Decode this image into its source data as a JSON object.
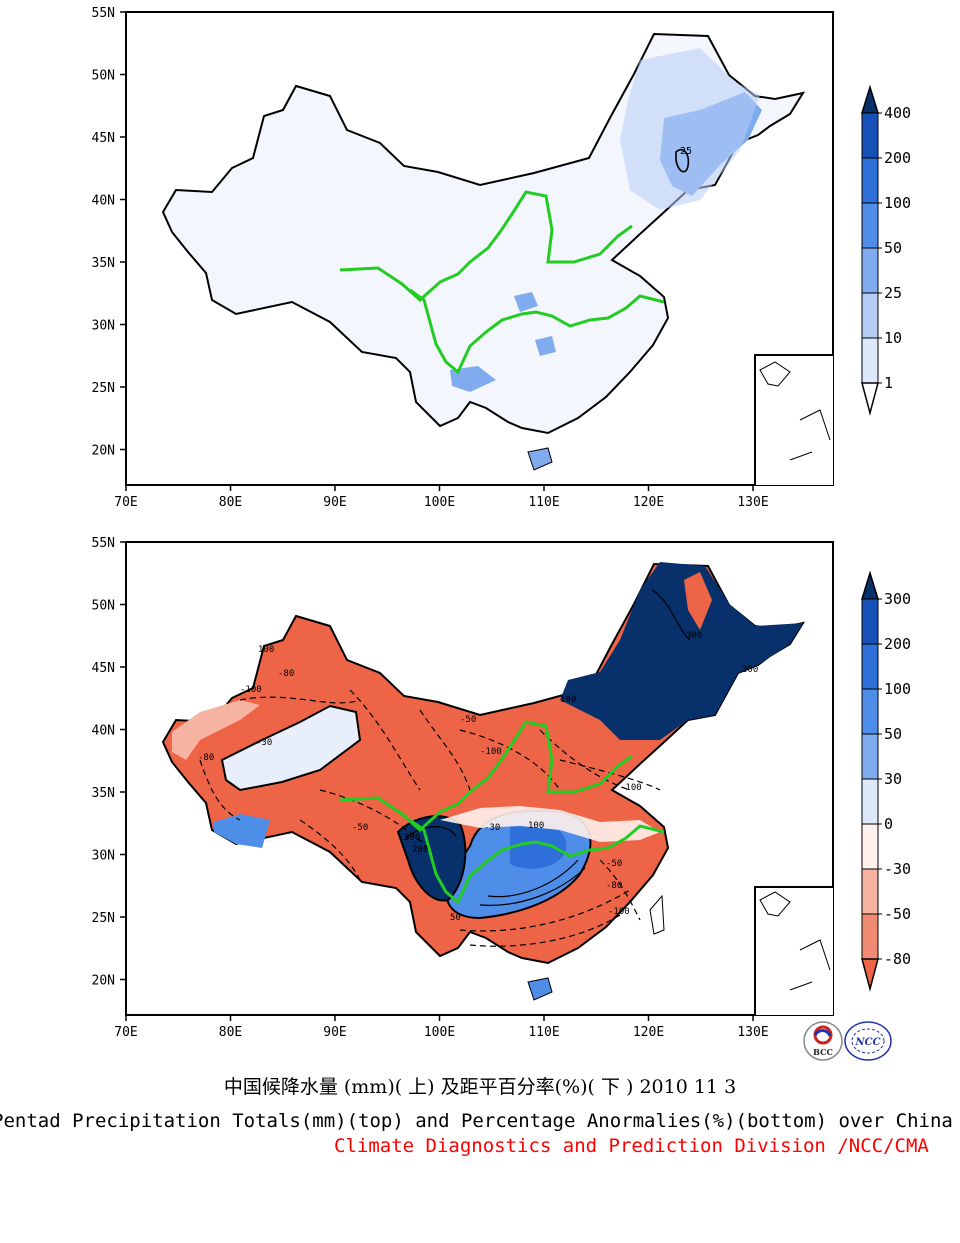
{
  "top_map": {
    "lat_labels": [
      "55N",
      "50N",
      "45N",
      "40N",
      "35N",
      "30N",
      "25N",
      "20N"
    ],
    "lon_labels": [
      "70E",
      "80E",
      "90E",
      "100E",
      "110E",
      "120E",
      "130E"
    ],
    "colorbar_labels": [
      "400",
      "200",
      "100",
      "50",
      "25",
      "10",
      "1"
    ],
    "colorbar_colors": [
      "#08306b",
      "#1751b8",
      "#2f6fd9",
      "#4f8ee8",
      "#80acef",
      "#b5ccf5",
      "#dde8fb",
      "#ffffff"
    ],
    "contour_label": "25"
  },
  "bottom_map": {
    "lat_labels": [
      "55N",
      "50N",
      "45N",
      "40N",
      "35N",
      "30N",
      "25N",
      "20N"
    ],
    "lon_labels": [
      "70E",
      "80E",
      "90E",
      "100E",
      "110E",
      "120E",
      "130E"
    ],
    "colorbar_labels": [
      "300",
      "200",
      "100",
      "50",
      "30",
      "0",
      "-30",
      "-50",
      "-80"
    ],
    "colorbar_colors": [
      "#08306b",
      "#1751b8",
      "#2f6fd9",
      "#4f8ee8",
      "#80acef",
      "#dde8fb",
      "#fff1ec",
      "#f7b3a2",
      "#f28b73",
      "#ee6446"
    ],
    "contour_labels": [
      "100",
      "-80",
      "-100",
      "-30",
      "-50",
      "300",
      "200",
      "50",
      "0"
    ]
  },
  "logos": {
    "left": "BCC",
    "right": "NCC"
  },
  "captions": {
    "title_cn": "中国候降水量 (mm)( 上) 及距平百分率(%)( 下 ) 2010 11 3",
    "title_en": "Pentad Precipitation Totals(mm)(top) and Percentage Anormalies(%)(bottom) over China",
    "credit": "Climate Diagnostics and Prediction Division /NCC/CMA",
    "credit_color": "#ff0000"
  }
}
